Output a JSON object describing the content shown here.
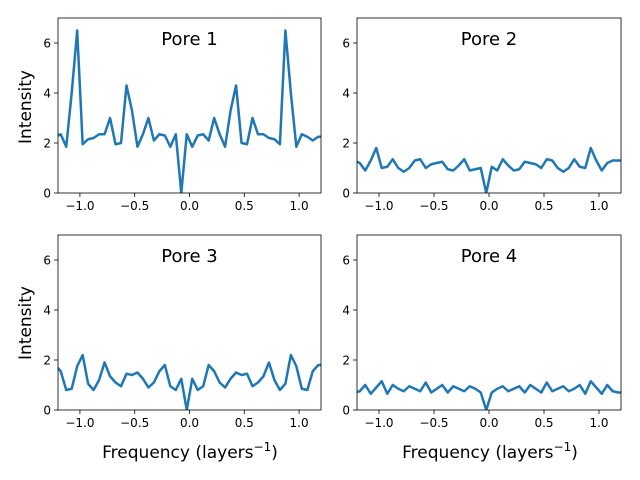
{
  "figure": {
    "ylabel": "Intensity",
    "xlabel_main": "Frequency (layers",
    "xlabel_sup": "−1",
    "xlabel_close": ")"
  },
  "chart_data": [
    {
      "type": "line",
      "title": "Pore 1",
      "xlim": [
        -1.2,
        1.2
      ],
      "ylim": [
        0,
        7
      ],
      "xticks": [
        -1.0,
        -0.5,
        0.0,
        0.5,
        1.0
      ],
      "xtick_labels": [
        "−1.0",
        "−0.5",
        "0.0",
        "0.5",
        "1.0"
      ],
      "yticks": [
        0,
        2,
        4,
        6
      ],
      "ytick_labels": [
        "0",
        "2",
        "4",
        "6"
      ],
      "color": "#1f77b4",
      "x": [
        -1.225,
        -1.175,
        -1.125,
        -1.075,
        -1.025,
        -0.975,
        -0.925,
        -0.875,
        -0.825,
        -0.775,
        -0.725,
        -0.675,
        -0.625,
        -0.575,
        -0.525,
        -0.475,
        -0.425,
        -0.375,
        -0.325,
        -0.275,
        -0.225,
        -0.175,
        -0.125,
        -0.075,
        -0.025,
        0.025,
        0.075,
        0.125,
        0.175,
        0.225,
        0.275,
        0.325,
        0.375,
        0.425,
        0.475,
        0.525,
        0.575,
        0.625,
        0.675,
        0.725,
        0.775,
        0.825,
        0.875,
        0.925,
        0.975,
        1.025,
        1.075,
        1.125,
        1.175,
        1.225
      ],
      "y": [
        2.25,
        2.35,
        1.85,
        4.0,
        6.5,
        1.95,
        2.15,
        2.2,
        2.35,
        2.35,
        3.0,
        1.95,
        2.0,
        4.3,
        3.3,
        1.85,
        2.35,
        3.0,
        2.1,
        2.35,
        2.3,
        1.85,
        2.35,
        0.0,
        2.35,
        1.85,
        2.3,
        2.35,
        2.1,
        3.0,
        2.35,
        1.85,
        3.3,
        4.3,
        2.0,
        1.95,
        3.0,
        2.35,
        2.35,
        2.2,
        2.15,
        1.95,
        6.5,
        4.0,
        1.85,
        2.35,
        2.25,
        2.1,
        2.25,
        2.25
      ]
    },
    {
      "type": "line",
      "title": "Pore 2",
      "xlim": [
        -1.2,
        1.2
      ],
      "ylim": [
        0,
        7
      ],
      "xticks": [
        -1.0,
        -0.5,
        0.0,
        0.5,
        1.0
      ],
      "xtick_labels": [
        "−1.0",
        "−0.5",
        "0.0",
        "0.5",
        "1.0"
      ],
      "yticks": [
        0,
        2,
        4,
        6
      ],
      "ytick_labels": [
        "0",
        "2",
        "4",
        "6"
      ],
      "color": "#1f77b4",
      "x": [
        -1.225,
        -1.175,
        -1.125,
        -1.075,
        -1.025,
        -0.975,
        -0.925,
        -0.875,
        -0.825,
        -0.775,
        -0.725,
        -0.675,
        -0.625,
        -0.575,
        -0.525,
        -0.475,
        -0.425,
        -0.375,
        -0.325,
        -0.275,
        -0.225,
        -0.175,
        -0.125,
        -0.075,
        -0.025,
        0.025,
        0.075,
        0.125,
        0.175,
        0.225,
        0.275,
        0.325,
        0.375,
        0.425,
        0.475,
        0.525,
        0.575,
        0.625,
        0.675,
        0.725,
        0.775,
        0.825,
        0.875,
        0.925,
        0.975,
        1.025,
        1.075,
        1.125,
        1.175,
        1.225
      ],
      "y": [
        1.3,
        1.2,
        0.9,
        1.3,
        1.8,
        1.0,
        1.05,
        1.35,
        1.0,
        0.85,
        1.0,
        1.3,
        1.35,
        1.0,
        1.15,
        1.2,
        1.25,
        0.95,
        0.9,
        1.1,
        1.35,
        0.9,
        0.95,
        1.0,
        0.0,
        1.05,
        0.9,
        1.35,
        1.1,
        0.9,
        0.95,
        1.25,
        1.2,
        1.15,
        1.0,
        1.35,
        1.3,
        1.0,
        0.85,
        1.0,
        1.35,
        1.05,
        1.0,
        1.8,
        1.3,
        0.9,
        1.2,
        1.3,
        1.3,
        1.3
      ]
    },
    {
      "type": "line",
      "title": "Pore 3",
      "xlim": [
        -1.2,
        1.2
      ],
      "ylim": [
        0,
        7
      ],
      "xticks": [
        -1.0,
        -0.5,
        0.0,
        0.5,
        1.0
      ],
      "xtick_labels": [
        "−1.0",
        "−0.5",
        "0.0",
        "0.5",
        "1.0"
      ],
      "yticks": [
        0,
        2,
        4,
        6
      ],
      "ytick_labels": [
        "0",
        "2",
        "4",
        "6"
      ],
      "xlabel": "Frequency (layers⁻¹)",
      "color": "#1f77b4",
      "x": [
        -1.225,
        -1.175,
        -1.125,
        -1.075,
        -1.025,
        -0.975,
        -0.925,
        -0.875,
        -0.825,
        -0.775,
        -0.725,
        -0.675,
        -0.625,
        -0.575,
        -0.525,
        -0.475,
        -0.425,
        -0.375,
        -0.325,
        -0.275,
        -0.225,
        -0.175,
        -0.125,
        -0.075,
        -0.025,
        0.025,
        0.075,
        0.125,
        0.175,
        0.225,
        0.275,
        0.325,
        0.375,
        0.425,
        0.475,
        0.525,
        0.575,
        0.625,
        0.675,
        0.725,
        0.775,
        0.825,
        0.875,
        0.925,
        0.975,
        1.025,
        1.075,
        1.125,
        1.175,
        1.225
      ],
      "y": [
        1.8,
        1.55,
        0.8,
        0.85,
        1.75,
        2.2,
        1.05,
        0.8,
        1.2,
        1.9,
        1.35,
        1.1,
        0.95,
        1.45,
        1.4,
        1.5,
        1.25,
        0.9,
        1.1,
        1.55,
        1.8,
        0.95,
        0.8,
        1.25,
        0.0,
        1.25,
        0.8,
        0.95,
        1.8,
        1.55,
        1.1,
        0.9,
        1.25,
        1.5,
        1.4,
        1.45,
        0.95,
        1.1,
        1.35,
        1.9,
        1.2,
        0.8,
        1.05,
        2.2,
        1.75,
        0.85,
        0.8,
        1.55,
        1.8,
        1.8
      ]
    },
    {
      "type": "line",
      "title": "Pore 4",
      "xlim": [
        -1.2,
        1.2
      ],
      "ylim": [
        0,
        7
      ],
      "xticks": [
        -1.0,
        -0.5,
        0.0,
        0.5,
        1.0
      ],
      "xtick_labels": [
        "−1.0",
        "−0.5",
        "0.0",
        "0.5",
        "1.0"
      ],
      "yticks": [
        0,
        2,
        4,
        6
      ],
      "ytick_labels": [
        "0",
        "2",
        "4",
        "6"
      ],
      "xlabel": "Frequency (layers⁻¹)",
      "color": "#1f77b4",
      "x": [
        -1.225,
        -1.175,
        -1.125,
        -1.075,
        -1.025,
        -0.975,
        -0.925,
        -0.875,
        -0.825,
        -0.775,
        -0.725,
        -0.675,
        -0.625,
        -0.575,
        -0.525,
        -0.475,
        -0.425,
        -0.375,
        -0.325,
        -0.275,
        -0.225,
        -0.175,
        -0.125,
        -0.075,
        -0.025,
        0.025,
        0.075,
        0.125,
        0.175,
        0.225,
        0.275,
        0.325,
        0.375,
        0.425,
        0.475,
        0.525,
        0.575,
        0.625,
        0.675,
        0.725,
        0.775,
        0.825,
        0.875,
        0.925,
        0.975,
        1.025,
        1.075,
        1.125,
        1.175,
        1.225
      ],
      "y": [
        0.7,
        0.75,
        1.0,
        0.65,
        0.9,
        1.15,
        0.65,
        1.0,
        0.85,
        0.75,
        0.95,
        0.85,
        0.75,
        1.1,
        0.7,
        0.85,
        1.0,
        0.7,
        0.95,
        0.85,
        0.75,
        0.95,
        0.85,
        0.7,
        0.0,
        0.7,
        0.85,
        0.95,
        0.75,
        0.85,
        0.95,
        0.7,
        1.0,
        0.85,
        0.7,
        1.1,
        0.75,
        0.85,
        0.95,
        0.75,
        0.85,
        1.0,
        0.65,
        1.15,
        0.9,
        0.65,
        1.0,
        0.75,
        0.7,
        0.7
      ]
    }
  ]
}
